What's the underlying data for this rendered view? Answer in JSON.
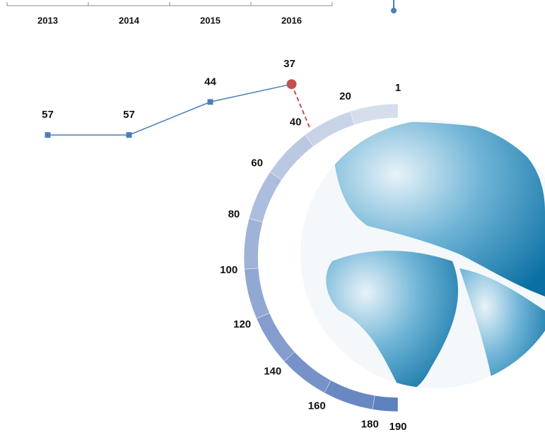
{
  "chart_data": [
    {
      "type": "line",
      "categories": [
        "2013",
        "2014",
        "2015",
        "2016"
      ],
      "values": [
        57,
        57,
        44,
        37
      ],
      "color": "#4a7ebb",
      "highlight_color": "#c0504d",
      "ylim": [
        70,
        30
      ]
    },
    {
      "type": "gauge",
      "ylim": [
        1,
        190
      ],
      "yticks": [
        1,
        20,
        40,
        60,
        80,
        100,
        120,
        140,
        160,
        180,
        190
      ],
      "colors": [
        "#dde2ef",
        "#5a7dbd"
      ]
    }
  ]
}
